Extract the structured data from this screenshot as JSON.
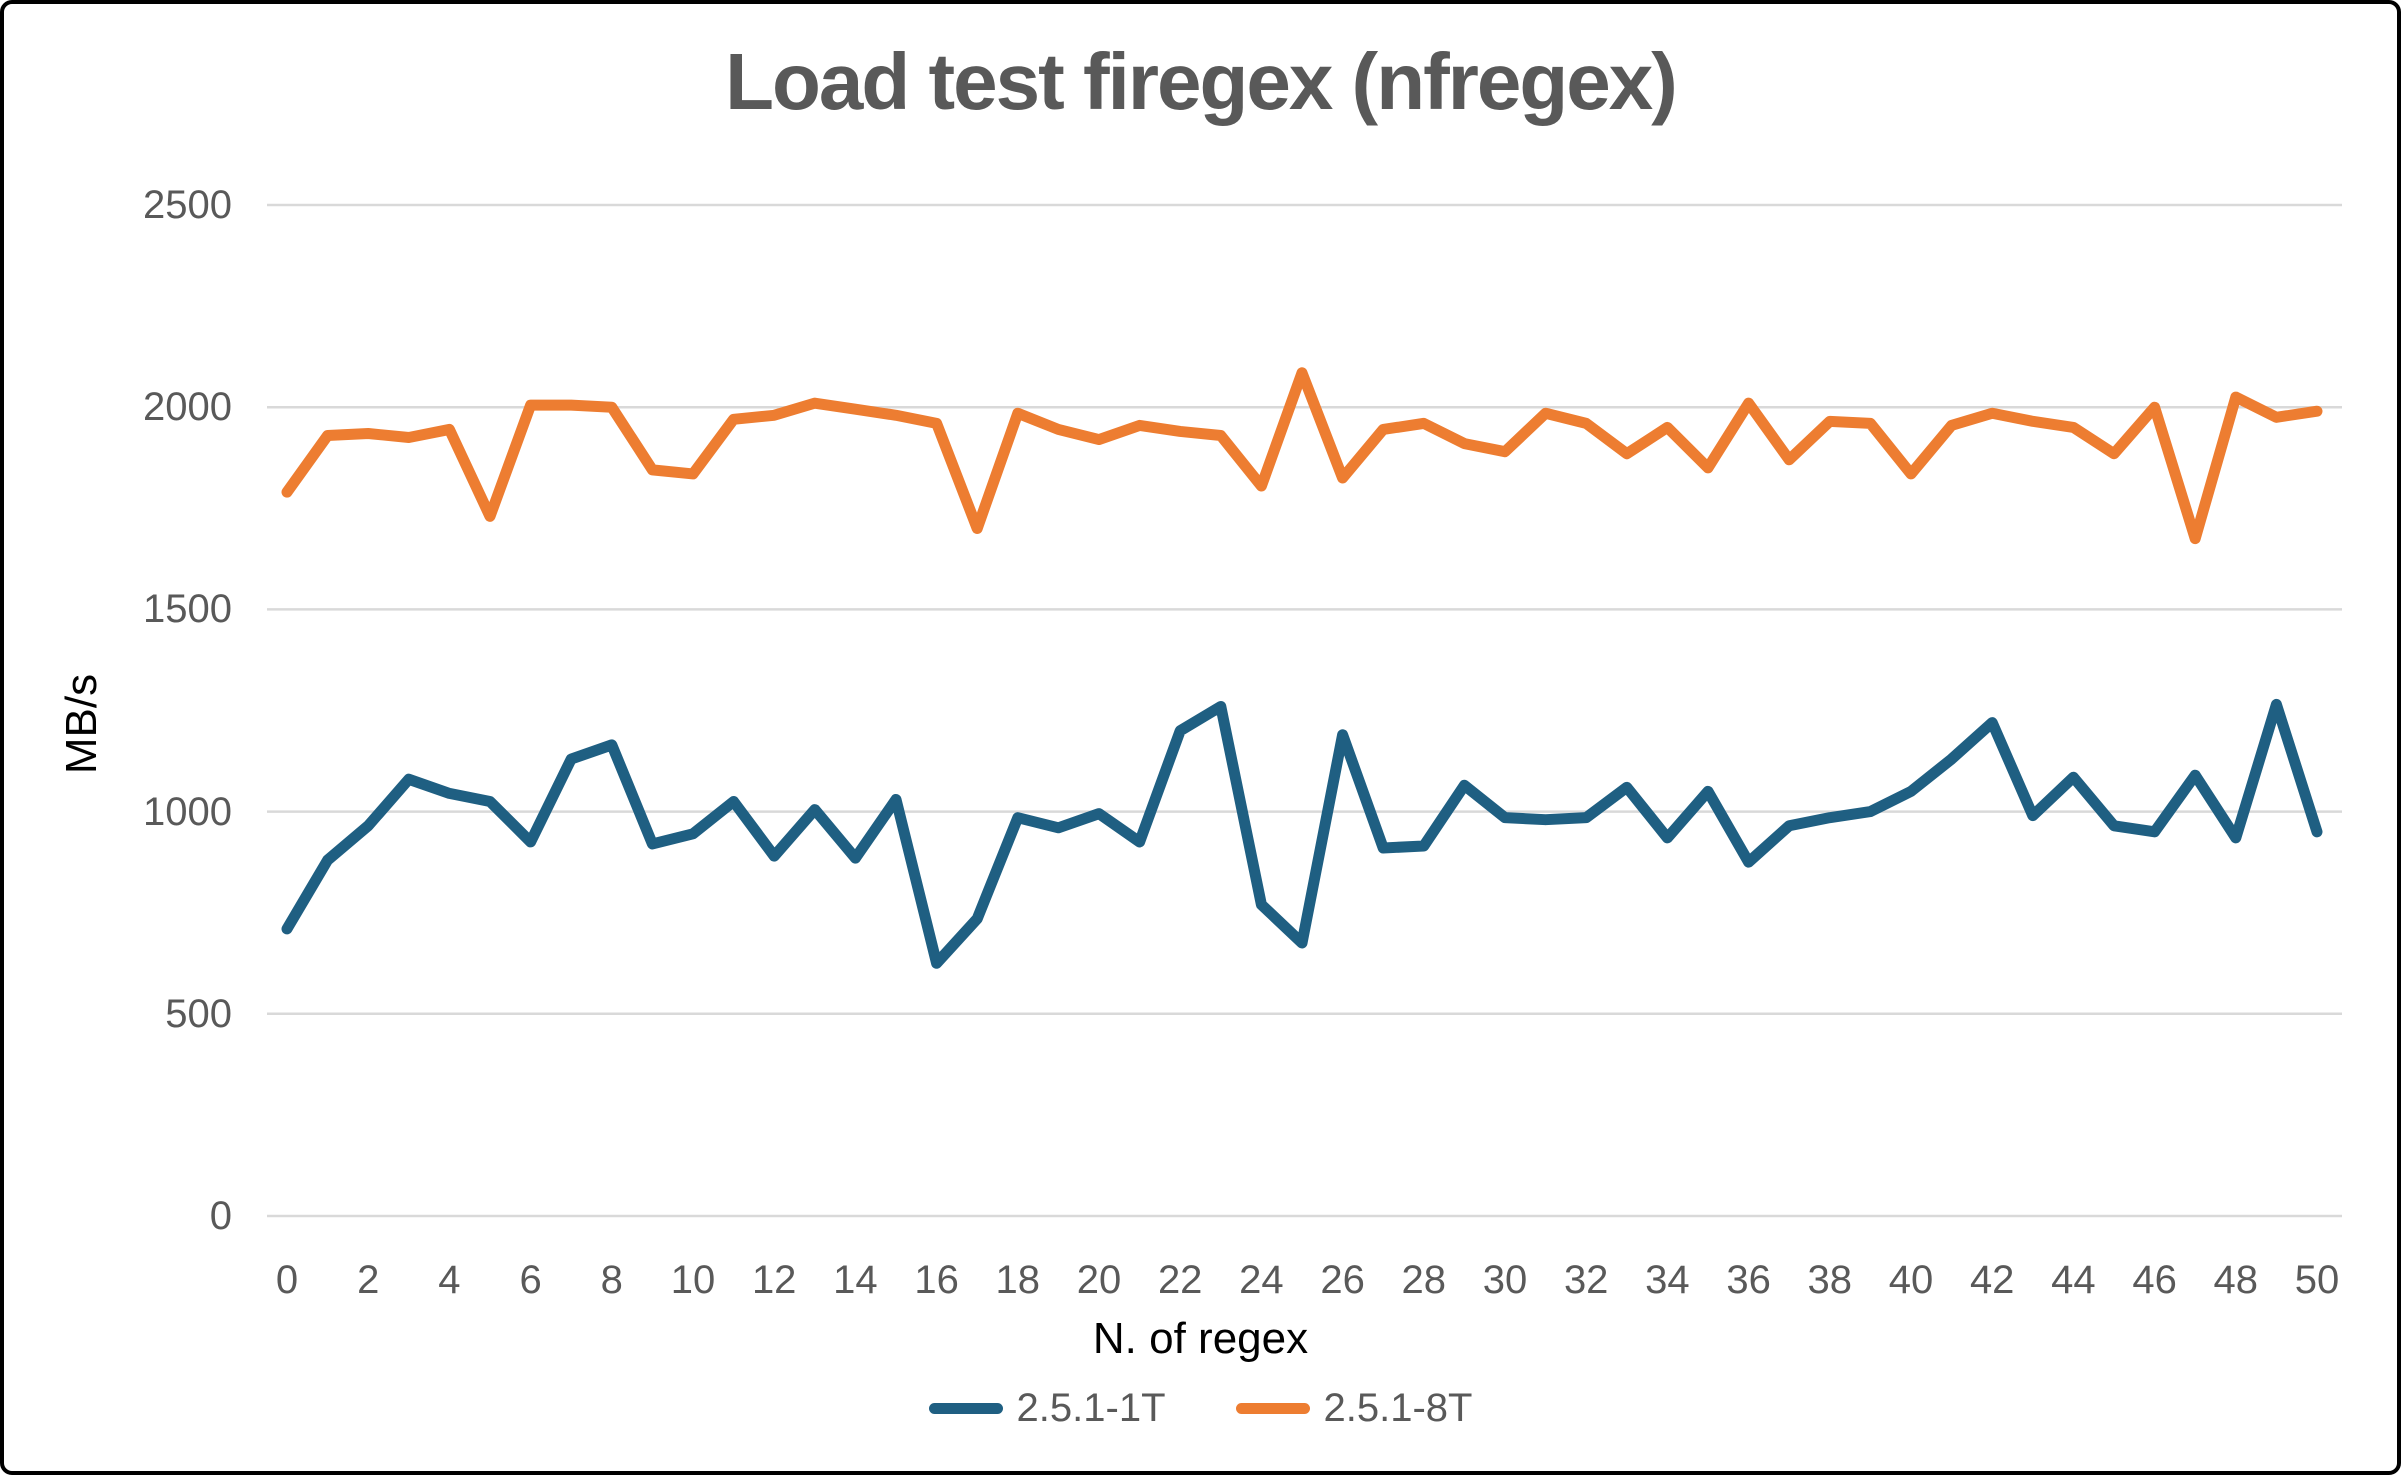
{
  "chart_data": {
    "type": "line",
    "title": "Load test firegex (nfregex)",
    "xlabel": "N. of regex",
    "ylabel": "MB/s",
    "x": [
      0,
      1,
      2,
      3,
      4,
      5,
      6,
      7,
      8,
      9,
      10,
      11,
      12,
      13,
      14,
      15,
      16,
      17,
      18,
      19,
      20,
      21,
      22,
      23,
      24,
      25,
      26,
      27,
      28,
      29,
      30,
      31,
      32,
      33,
      34,
      35,
      36,
      37,
      38,
      39,
      40,
      41,
      42,
      43,
      44,
      45,
      46,
      47,
      48,
      49,
      50
    ],
    "x_tick_labels": [
      "0",
      "2",
      "4",
      "6",
      "8",
      "10",
      "12",
      "14",
      "16",
      "18",
      "20",
      "22",
      "24",
      "26",
      "28",
      "30",
      "32",
      "34",
      "36",
      "38",
      "40",
      "42",
      "44",
      "46",
      "48",
      "50"
    ],
    "x_tick_values": [
      0,
      2,
      4,
      6,
      8,
      10,
      12,
      14,
      16,
      18,
      20,
      22,
      24,
      26,
      28,
      30,
      32,
      34,
      36,
      38,
      40,
      42,
      44,
      46,
      48,
      50
    ],
    "y_ticks": [
      0,
      500,
      1000,
      1500,
      2000,
      2500
    ],
    "ylim": [
      0,
      2500
    ],
    "xlim": [
      0,
      50
    ],
    "grid": "horizontal",
    "legend_position": "bottom-center",
    "colors": {
      "background": "#FFFFFF",
      "border": "#000000",
      "gridline": "#D9D9D9",
      "tick_text": "#595959",
      "title_text": "#595959",
      "axis_label_text": "#000000"
    },
    "series": [
      {
        "name": "2.5.1-1T",
        "color": "#1F5F82",
        "values": [
          710,
          880,
          965,
          1080,
          1045,
          1025,
          925,
          1130,
          1165,
          920,
          945,
          1025,
          890,
          1005,
          885,
          1030,
          625,
          735,
          985,
          960,
          995,
          925,
          1200,
          1260,
          770,
          675,
          1190,
          910,
          915,
          1065,
          985,
          980,
          985,
          1060,
          935,
          1050,
          875,
          965,
          985,
          1000,
          1050,
          1130,
          1220,
          990,
          1085,
          965,
          950,
          1090,
          935,
          1265,
          950
        ]
      },
      {
        "name": "2.5.1-8T",
        "color": "#ED7D31",
        "values": [
          1790,
          1930,
          1935,
          1925,
          1945,
          1730,
          2005,
          2005,
          2000,
          1845,
          1835,
          1970,
          1980,
          2010,
          1995,
          1980,
          1960,
          1700,
          1985,
          1945,
          1920,
          1955,
          1940,
          1930,
          1805,
          2085,
          1825,
          1945,
          1960,
          1910,
          1890,
          1985,
          1960,
          1885,
          1950,
          1850,
          2010,
          1870,
          1965,
          1960,
          1835,
          1955,
          1985,
          1965,
          1950,
          1885,
          2000,
          1675,
          2025,
          1975,
          1990
        ]
      }
    ]
  }
}
